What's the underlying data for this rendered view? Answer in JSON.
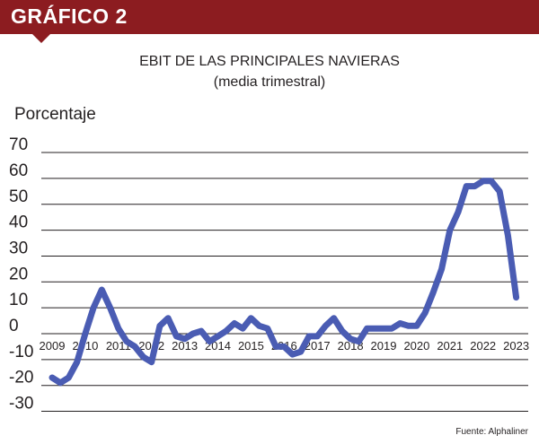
{
  "banner": {
    "label": "GRÁFICO 2"
  },
  "chart_data": {
    "type": "line",
    "title": "EBIT DE LAS PRINCIPALES NAVIERAS",
    "subtitle": "(media trimestral)",
    "ylabel": "Porcentaje",
    "xlabel": "",
    "ylim": [
      -30,
      70
    ],
    "yticks": [
      70,
      60,
      50,
      40,
      30,
      20,
      10,
      0,
      -10,
      -20,
      -30
    ],
    "xtick_labels": [
      "2009",
      "2010",
      "2011",
      "2012",
      "2013",
      "2014",
      "2015",
      "2016",
      "2017",
      "2018",
      "2019",
      "2020",
      "2021",
      "2022",
      "2023"
    ],
    "grid": "horizontal",
    "series_color": "#4a5cb3",
    "x": [
      "2009Q1",
      "2009Q2",
      "2009Q3",
      "2009Q4",
      "2010Q1",
      "2010Q2",
      "2010Q3",
      "2010Q4",
      "2011Q1",
      "2011Q2",
      "2011Q3",
      "2011Q4",
      "2012Q1",
      "2012Q2",
      "2012Q3",
      "2012Q4",
      "2013Q1",
      "2013Q2",
      "2013Q3",
      "2013Q4",
      "2014Q1",
      "2014Q2",
      "2014Q3",
      "2014Q4",
      "2015Q1",
      "2015Q2",
      "2015Q3",
      "2015Q4",
      "2016Q1",
      "2016Q2",
      "2016Q3",
      "2016Q4",
      "2017Q1",
      "2017Q2",
      "2017Q3",
      "2017Q4",
      "2018Q1",
      "2018Q2",
      "2018Q3",
      "2018Q4",
      "2019Q1",
      "2019Q2",
      "2019Q3",
      "2019Q4",
      "2020Q1",
      "2020Q2",
      "2020Q3",
      "2020Q4",
      "2021Q1",
      "2021Q2",
      "2021Q3",
      "2021Q4",
      "2022Q1",
      "2022Q2",
      "2022Q3",
      "2022Q4",
      "2023Q1"
    ],
    "series": [
      {
        "values": [
          -17,
          -19,
          -17,
          -11,
          0,
          10,
          17,
          10,
          2,
          -3,
          -5,
          -9,
          -11,
          3,
          6,
          -1,
          -2,
          0,
          1,
          -3,
          -1,
          1,
          4,
          2,
          6,
          3,
          2,
          -5,
          -5,
          -8,
          -7,
          -1,
          -1,
          3,
          6,
          1,
          -2,
          -3,
          2,
          2,
          2,
          2,
          4,
          3,
          3,
          8,
          16,
          25,
          40,
          47,
          57,
          57,
          59,
          59,
          55,
          38,
          14
        ]
      }
    ]
  },
  "source": "Fuente: Alphaliner"
}
